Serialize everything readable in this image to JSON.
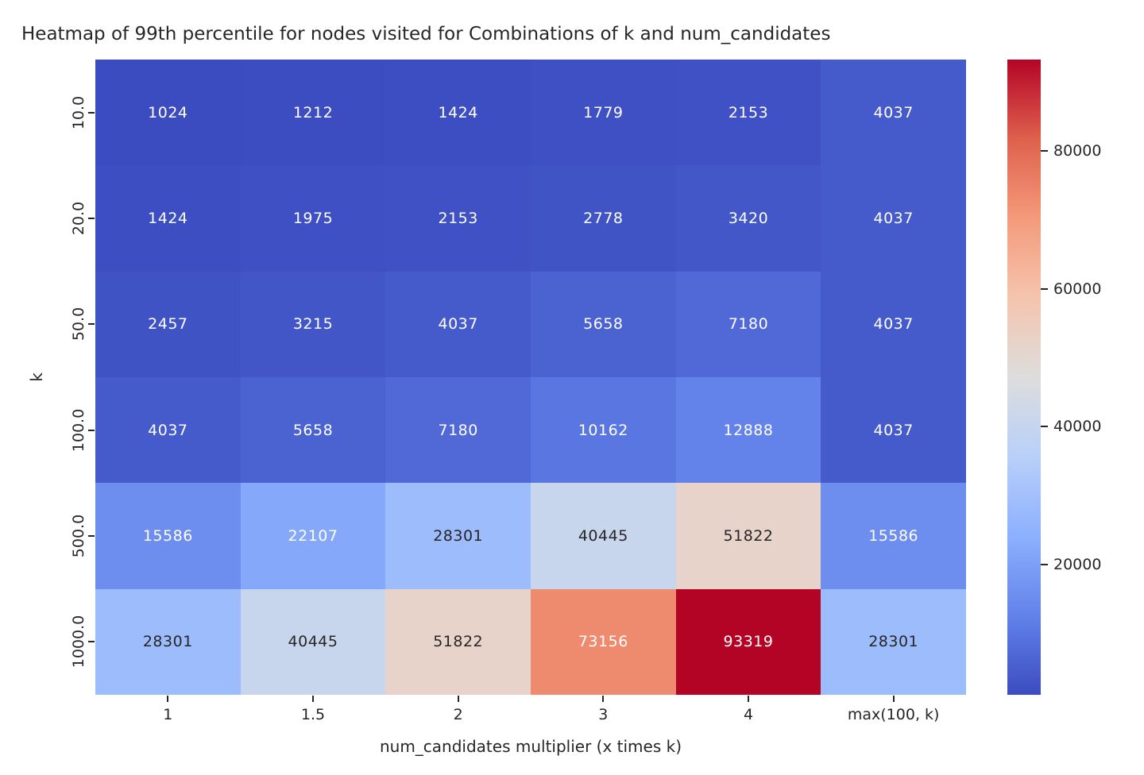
{
  "chart_data": {
    "type": "heatmap",
    "title": "Heatmap of 99th percentile for nodes visited for Combinations of k and num_candidates",
    "xlabel": "num_candidates multiplier (x times k)",
    "ylabel": "k",
    "x_categories": [
      "1",
      "1.5",
      "2",
      "3",
      "4",
      "max(100, k)"
    ],
    "y_categories": [
      "10.0",
      "20.0",
      "50.0",
      "100.0",
      "500.0",
      "1000.0"
    ],
    "values": [
      [
        1024,
        1212,
        1424,
        1779,
        2153,
        4037
      ],
      [
        1424,
        1975,
        2153,
        2778,
        3420,
        4037
      ],
      [
        2457,
        3215,
        4037,
        5658,
        7180,
        4037
      ],
      [
        4037,
        5658,
        7180,
        10162,
        12888,
        4037
      ],
      [
        15586,
        22107,
        28301,
        40445,
        51822,
        15586
      ],
      [
        28301,
        40445,
        51822,
        73156,
        93319,
        28301
      ]
    ],
    "colormap": "coolwarm",
    "vmin": 1024,
    "vmax": 93319,
    "colorbar_ticks": [
      20000,
      40000,
      60000,
      80000
    ],
    "annotated": true,
    "legend_position": "right-colorbar",
    "grid": false
  },
  "colors": {
    "text": "#262626",
    "annot_light": "#ffffff",
    "annot_dark": "#262626",
    "background": "#ffffff",
    "cmap_low": "#3b4cc0",
    "cmap_mid": "#dddddd",
    "cmap_high": "#b40426"
  }
}
